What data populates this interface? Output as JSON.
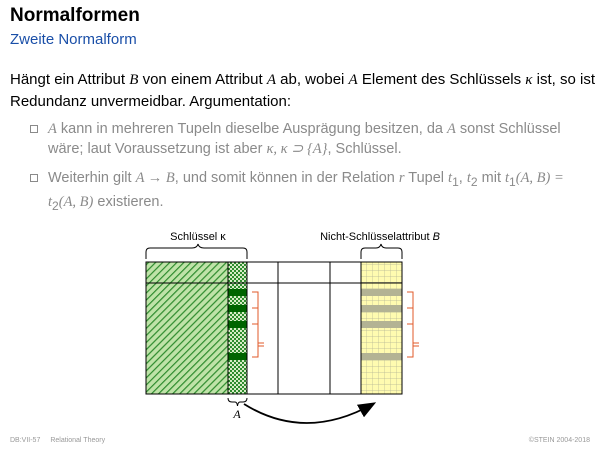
{
  "slide": {
    "title": "Normalformen",
    "subtitle": "Zweite Normalform"
  },
  "intro": {
    "part1": "Hängt ein Attribut ",
    "B": "B",
    "part2": " von einem Attribut ",
    "A": "A",
    "part3": " ab, wobei ",
    "A2": "A",
    "part4": " Element des Schlüssels ",
    "kappa": "κ",
    "part5": " ist, so ist Redundanz unvermeidbar. Argumentation:"
  },
  "bullets": {
    "b1": {
      "m1": "A",
      "t1": " kann in mehreren Tupeln dieselbe Ausprägung besitzen, da ",
      "m2": "A",
      "t2": " sonst Schlüssel wäre; laut Voraussetzung ist aber ",
      "m3": "κ, κ ⊃ {A}",
      "t3": ", Schlüssel."
    },
    "b2": {
      "t1": "Weiterhin gilt ",
      "m1": "A → B",
      "t2": ", und somit können in der Relation ",
      "m2": "r",
      "t3": " Tupel ",
      "m3": "t",
      "s1": "1",
      "t4": ", ",
      "m4": "t",
      "s2": "2",
      "t5": " mit ",
      "m5": "t",
      "s3": "1",
      "m6": "(A, B) = t",
      "s4": "2",
      "m7": "(A, B)",
      "t6": " existieren."
    }
  },
  "diagram": {
    "key_label": "Schlüssel κ",
    "nonkey_label_text": "Nicht-Schlüsselattribut ",
    "nonkey_label_var": "B",
    "attr_label": "A"
  },
  "footer": {
    "course": "DB:VII-57",
    "topic": "Relational Theory",
    "copyright": "©STEIN 2004-2018"
  },
  "colors": {
    "subtitle": "#1a4fa8",
    "key_fill": "#2e8b2e",
    "attr_highlight": "#006400",
    "nonkey_fill": "#fffbb0",
    "nonkey_highlight": "#b3b394",
    "brace_red": "#e05a2a"
  }
}
